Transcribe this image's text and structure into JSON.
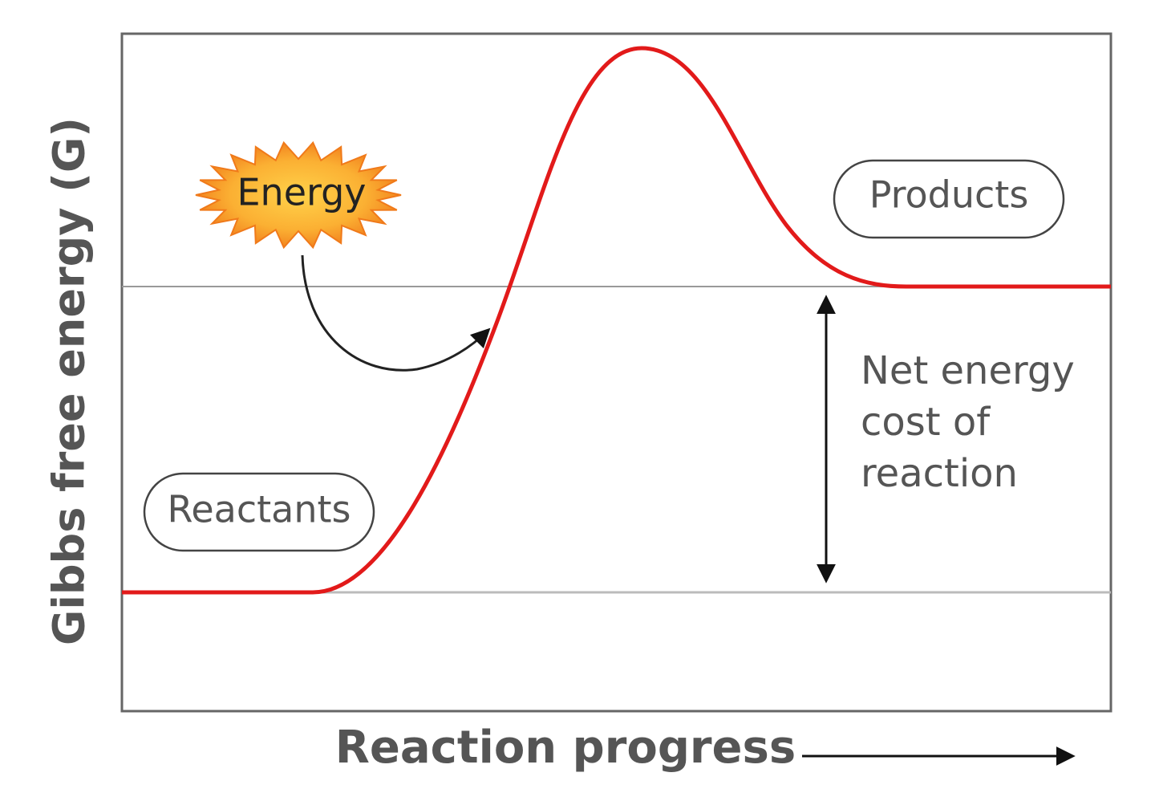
{
  "axes": {
    "y_label": "Gibbs free energy (G)",
    "x_label": "Reaction progress"
  },
  "labels": {
    "energy": "Energy",
    "reactants": "Reactants",
    "products": "Products",
    "net_cost": [
      "Net energy",
      "cost of",
      "reaction"
    ]
  }
}
